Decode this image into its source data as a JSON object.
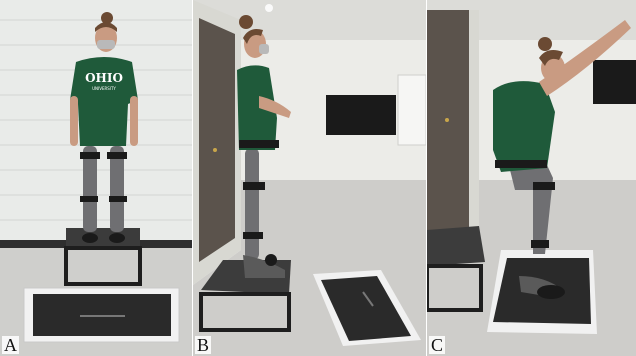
{
  "figure": {
    "panels": [
      {
        "label": "A",
        "view": "front view, standing on box above force plate"
      },
      {
        "label": "B",
        "view": "side view, standing on edge of box"
      },
      {
        "label": "C",
        "view": "side view, landing squat on force plate"
      }
    ],
    "shirt_text": {
      "main": "OHIO",
      "sub": "UNIVERSITY"
    }
  },
  "colors": {
    "wall": "#e6e8e6",
    "floor": "#cfcfcc",
    "shirt": "#1f5a3a",
    "leggings": "#6f6f72",
    "box_top": "#3a3a3a",
    "plate_frame": "#f2f2f2",
    "plate_mat": "#2a2a2a"
  }
}
